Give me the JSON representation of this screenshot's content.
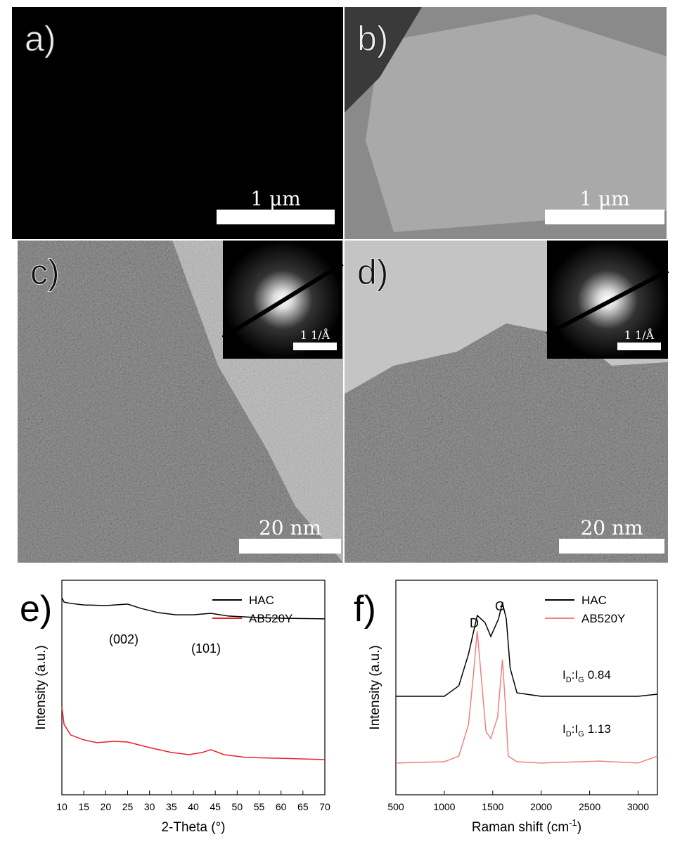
{
  "panels": [
    {
      "label": "a)",
      "scale_bar": "1 μm"
    },
    {
      "label": "b)",
      "scale_bar": "1 μm"
    },
    {
      "label": "c)",
      "scale_bar": "20 nm",
      "inset_scale_bar": "1 1/Å"
    },
    {
      "label": "d)",
      "scale_bar": "20 nm",
      "inset_scale_bar": "1 1/Å"
    }
  ],
  "chart_data": [
    {
      "type": "line",
      "panel_label": "e)",
      "x_label": "2-Theta (°)",
      "y_label": "Intensity (a.u.)",
      "xlim": [
        10,
        70
      ],
      "xticks": [
        10,
        15,
        20,
        25,
        30,
        35,
        40,
        45,
        50,
        55,
        60,
        65,
        70
      ],
      "ylim": [
        0,
        100
      ],
      "legend": "top-right",
      "annotations": [
        "(002)",
        "(101)"
      ],
      "series": [
        {
          "name": "HAC",
          "color": "#000000",
          "x": [
            10,
            10.5,
            12,
            15,
            20,
            25,
            28,
            32,
            36,
            40,
            44,
            48,
            55,
            60,
            70
          ],
          "values": [
            91.8,
            89.8,
            89.2,
            88.5,
            88.2,
            88.9,
            86.9,
            84.9,
            83.9,
            83.9,
            84.6,
            83.3,
            82.6,
            82.3,
            82.0
          ]
        },
        {
          "name": "AB520Y",
          "color": "#e8212a",
          "x": [
            10,
            10.5,
            12,
            15,
            18,
            22,
            25,
            30,
            35,
            39,
            42,
            44,
            47,
            52,
            60,
            70
          ],
          "values": [
            41.0,
            32.8,
            27.9,
            25.6,
            24.3,
            24.9,
            24.6,
            22.0,
            19.7,
            18.7,
            19.7,
            21.0,
            18.7,
            17.4,
            17.0,
            16.4
          ]
        }
      ]
    },
    {
      "type": "line",
      "panel_label": "f)",
      "x_label": {
        "text": "Raman shift (cm",
        "superscript": "-1",
        "suffix": ")"
      },
      "y_label": "Intensity (a.u.)",
      "xlim": [
        500,
        3200
      ],
      "xticks": [
        500,
        1000,
        1500,
        2000,
        2500,
        3000
      ],
      "ylim": [
        0,
        100
      ],
      "legend": "top-right",
      "annotations": [
        "D",
        "G"
      ],
      "ratio_symbol": [
        "I",
        "D",
        ":I",
        "G"
      ],
      "series": [
        {
          "name": "HAC",
          "color": "#000000",
          "ratio": 0.84,
          "x": [
            500,
            1000,
            1150,
            1250,
            1340,
            1420,
            1480,
            1560,
            1600,
            1640,
            1680,
            1750,
            2000,
            2500,
            3000,
            3200
          ],
          "values": [
            45.9,
            45.9,
            50.8,
            65.6,
            83.6,
            80.3,
            73.8,
            82.0,
            89.5,
            82.0,
            59.0,
            47.5,
            45.9,
            45.9,
            45.9,
            46.9
          ]
        },
        {
          "name": "AB520Y",
          "color": "#f08080",
          "ratio": 1.13,
          "x": [
            500,
            1000,
            1150,
            1250,
            1300,
            1340,
            1380,
            1430,
            1480,
            1550,
            1600,
            1630,
            1660,
            1750,
            2000,
            2600,
            3000,
            3200
          ],
          "values": [
            14.8,
            15.4,
            18.0,
            32.8,
            55.7,
            76.4,
            55.7,
            29.5,
            26.2,
            36.1,
            63.0,
            42.6,
            18.0,
            15.4,
            14.8,
            15.7,
            14.8,
            18.0
          ]
        }
      ]
    }
  ]
}
